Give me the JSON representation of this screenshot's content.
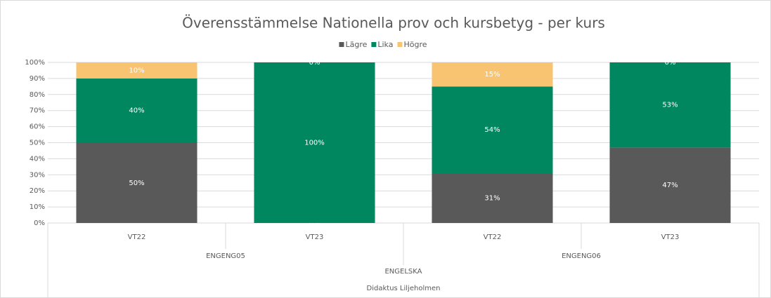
{
  "chart_data": {
    "type": "stacked_bar",
    "title": "Överensstämmelse Nationella prov och kursbetyg - per kurs",
    "category_levels": [
      [
        "VT22",
        "VT23",
        "VT22",
        "VT23"
      ],
      [
        "ENGENG05",
        "ENGENG06"
      ],
      [
        "ENGELSKA"
      ],
      [
        "Didaktus Liljeholmen"
      ]
    ],
    "series": [
      {
        "name": "Lägre",
        "color": "#595959",
        "values": [
          50,
          0,
          31,
          47
        ],
        "value_labels": [
          "50%",
          "0%",
          "31%",
          "47%"
        ]
      },
      {
        "name": "Lika",
        "color": "#00875f",
        "values": [
          40,
          100,
          54,
          53
        ],
        "value_labels": [
          "40%",
          "100%",
          "54%",
          "53%"
        ]
      },
      {
        "name": "Högre",
        "color": "#f8c471",
        "values": [
          10,
          0,
          15,
          0
        ],
        "value_labels": [
          "10%",
          "0%",
          "15%",
          "0%"
        ]
      }
    ],
    "ylim": [
      0,
      100
    ],
    "yticks": [
      {
        "value": 0,
        "label": "0%"
      },
      {
        "value": 10,
        "label": "10%"
      },
      {
        "value": 20,
        "label": "20%"
      },
      {
        "value": 30,
        "label": "30%"
      },
      {
        "value": 40,
        "label": "40%"
      },
      {
        "value": 50,
        "label": "50%"
      },
      {
        "value": 60,
        "label": "60%"
      },
      {
        "value": 70,
        "label": "70%"
      },
      {
        "value": 80,
        "label": "80%"
      },
      {
        "value": 90,
        "label": "90%"
      },
      {
        "value": 100,
        "label": "100%"
      }
    ],
    "grid": true,
    "legend": "top"
  }
}
